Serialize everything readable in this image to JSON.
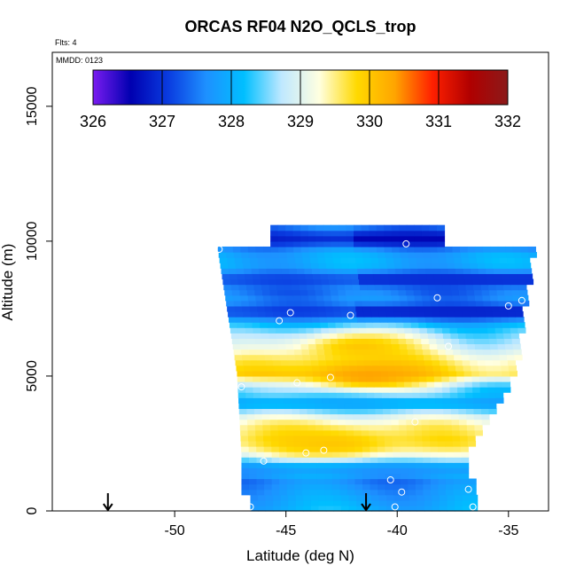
{
  "chart_data": {
    "type": "heatmap",
    "title": "ORCAS RF04 N2O_QCLS_trop",
    "subtitle_lines": [
      "Flts: 4",
      "MMDD: 0123"
    ],
    "xlabel": "Latitude (deg N)",
    "ylabel": "Altitude (m)",
    "xlim": [
      -55.5,
      -33.2
    ],
    "ylim": [
      0,
      17000
    ],
    "xticks": [
      -50,
      -45,
      -40,
      -35
    ],
    "xtick_labels": [
      "-50",
      "-45",
      "-40",
      "-35"
    ],
    "yticks": [
      0,
      5000,
      10000,
      15000
    ],
    "ytick_labels": [
      "0",
      "5000",
      "10000",
      "15000"
    ],
    "colorbar": {
      "position": "top",
      "min": 326,
      "max": 332,
      "ticks": [
        326,
        327,
        328,
        329,
        330,
        331,
        332
      ],
      "tick_labels": [
        "326",
        "327",
        "328",
        "329",
        "330",
        "331",
        "332"
      ],
      "colors": [
        "#7a1cf0",
        "#0000b0",
        "#0a3ce0",
        "#1e90ff",
        "#00bfff",
        "#bfe8ff",
        "#ffffe0",
        "#ffd900",
        "#ffa500",
        "#ff2000",
        "#b00000",
        "#8b1a1a"
      ]
    },
    "field": {
      "profile_altitudes_m": [
        0,
        500,
        1000,
        1500,
        2000,
        2500,
        3000,
        3500,
        4000,
        4500,
        4700,
        5000,
        5500,
        6000,
        6500,
        7000,
        7500,
        8000,
        8500,
        9000,
        9500,
        10000
      ],
      "profile_values": [
        328.0,
        327.8,
        327.6,
        328.5,
        329.1,
        329.6,
        329.4,
        329.0,
        328.6,
        328.3,
        328.9,
        329.7,
        329.4,
        328.8,
        328.4,
        328.0,
        327.8,
        327.5,
        327.9,
        328.0,
        327.9,
        327.6
      ],
      "hot_cores": [
        {
          "lat": -43.0,
          "alt": 2400,
          "value": 330.0
        },
        {
          "lat": -41.5,
          "alt": 4950,
          "value": 330.4
        },
        {
          "lat": -41.8,
          "alt": 6000,
          "value": 330.0
        }
      ],
      "low_bands": [
        {
          "alt": 10000,
          "value": 326.6
        },
        {
          "alt": 8500,
          "value": 326.9
        },
        {
          "alt": 7300,
          "value": 326.8
        },
        {
          "alt": 3900,
          "value": 327.4
        },
        {
          "alt": 1500,
          "value": 327.2
        }
      ]
    },
    "sample_points": [
      {
        "lat": -48.0,
        "alt": 9700
      },
      {
        "lat": -39.6,
        "alt": 9900
      },
      {
        "lat": -38.2,
        "alt": 7900
      },
      {
        "lat": -35.0,
        "alt": 7600
      },
      {
        "lat": -34.4,
        "alt": 7800
      },
      {
        "lat": -45.3,
        "alt": 7050
      },
      {
        "lat": -44.8,
        "alt": 7350
      },
      {
        "lat": -42.1,
        "alt": 7250
      },
      {
        "lat": -37.7,
        "alt": 6100
      },
      {
        "lat": -43.0,
        "alt": 4950
      },
      {
        "lat": -44.5,
        "alt": 4750
      },
      {
        "lat": -47.0,
        "alt": 4600
      },
      {
        "lat": -39.2,
        "alt": 3300
      },
      {
        "lat": -43.3,
        "alt": 2250
      },
      {
        "lat": -44.1,
        "alt": 2150
      },
      {
        "lat": -46.0,
        "alt": 1850
      },
      {
        "lat": -40.3,
        "alt": 1150
      },
      {
        "lat": -36.8,
        "alt": 800
      },
      {
        "lat": -39.8,
        "alt": 700
      },
      {
        "lat": -46.6,
        "alt": 150
      },
      {
        "lat": -40.1,
        "alt": 150
      },
      {
        "lat": -36.6,
        "alt": 150
      }
    ],
    "markers": [
      {
        "type": "arrow-down",
        "lat": -53.0
      },
      {
        "type": "arrow-down",
        "lat": -41.4
      }
    ]
  }
}
